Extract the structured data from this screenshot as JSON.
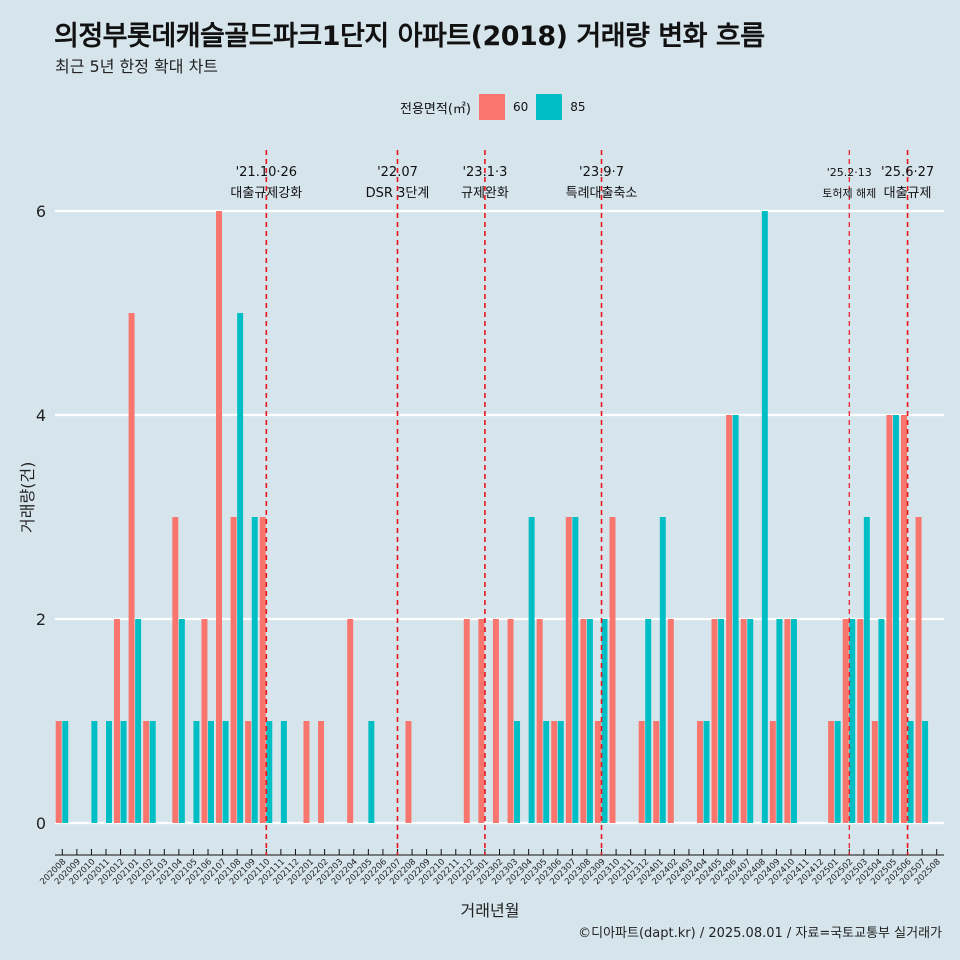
{
  "header": {
    "title": "의정부롯데캐슬골드파크1단지 아파트(2018) 거래량 변화 흐름",
    "subtitle": "최근 5년 한정 확대 차트"
  },
  "legend": {
    "title": "전용면적(㎡)",
    "items": [
      {
        "label": "60",
        "color": "#f8766d"
      },
      {
        "label": "85",
        "color": "#00bfc4"
      }
    ]
  },
  "caption": "©디아파트(dapt.kr) / 2025.08.01 / 자료=국토교통부 실거래가",
  "chart_data": {
    "type": "bar",
    "title": "의정부롯데캐슬골드파크1단지 아파트(2018) 거래량 변화 흐름",
    "xlabel": "거래년월",
    "ylabel": "거래량(건)",
    "ylim": [
      0,
      6.5
    ],
    "yticks": [
      0,
      2,
      4,
      6
    ],
    "grid": true,
    "legend_position": "top",
    "categories": [
      "202008",
      "202009",
      "202010",
      "202011",
      "202012",
      "202101",
      "202102",
      "202103",
      "202104",
      "202105",
      "202106",
      "202107",
      "202108",
      "202109",
      "202110",
      "202111",
      "202112",
      "202201",
      "202202",
      "202203",
      "202204",
      "202205",
      "202206",
      "202207",
      "202208",
      "202209",
      "202210",
      "202211",
      "202212",
      "202301",
      "202302",
      "202303",
      "202304",
      "202305",
      "202306",
      "202307",
      "202308",
      "202309",
      "202310",
      "202311",
      "202312",
      "202401",
      "202402",
      "202403",
      "202404",
      "202405",
      "202406",
      "202407",
      "202408",
      "202409",
      "202410",
      "202411",
      "202412",
      "202501",
      "202502",
      "202503",
      "202504",
      "202505",
      "202506",
      "202507",
      "202508"
    ],
    "series": [
      {
        "name": "60",
        "color": "#f8766d",
        "values": [
          1,
          0,
          0,
          0,
          2,
          5,
          1,
          0,
          3,
          0,
          2,
          6,
          3,
          1,
          3,
          0,
          0,
          1,
          1,
          0,
          2,
          0,
          0,
          0,
          1,
          0,
          0,
          0,
          2,
          2,
          2,
          2,
          0,
          2,
          1,
          3,
          2,
          1,
          3,
          0,
          1,
          1,
          2,
          0,
          1,
          2,
          4,
          2,
          0,
          1,
          2,
          0,
          0,
          1,
          2,
          2,
          1,
          4,
          4,
          3,
          0
        ]
      },
      {
        "name": "85",
        "color": "#00bfc4",
        "values": [
          1,
          0,
          1,
          1,
          1,
          2,
          1,
          0,
          2,
          1,
          1,
          1,
          5,
          3,
          1,
          1,
          0,
          0,
          0,
          0,
          0,
          1,
          0,
          0,
          0,
          0,
          0,
          0,
          0,
          0,
          0,
          1,
          3,
          1,
          1,
          3,
          2,
          2,
          0,
          0,
          2,
          3,
          0,
          0,
          1,
          2,
          4,
          2,
          6,
          2,
          2,
          0,
          0,
          1,
          2,
          3,
          2,
          4,
          1,
          1,
          0
        ]
      }
    ],
    "annotations": [
      {
        "category": "202110",
        "date": "'21.10·26",
        "label": "대출규제강화",
        "small": false
      },
      {
        "category": "202207",
        "date": "'22.07",
        "label": "DSR 3단계",
        "small": false
      },
      {
        "category": "202301",
        "date": "'23.1·3",
        "label": "규제완화",
        "small": false
      },
      {
        "category": "202309",
        "date": "'23.9·7",
        "label": "특례대출축소",
        "small": false
      },
      {
        "category": "202502",
        "date": "'25.2·13",
        "label": "토허제 해제",
        "small": true
      },
      {
        "category": "202506",
        "date": "'25.6·27",
        "label": "대출규제",
        "small": false
      }
    ]
  }
}
